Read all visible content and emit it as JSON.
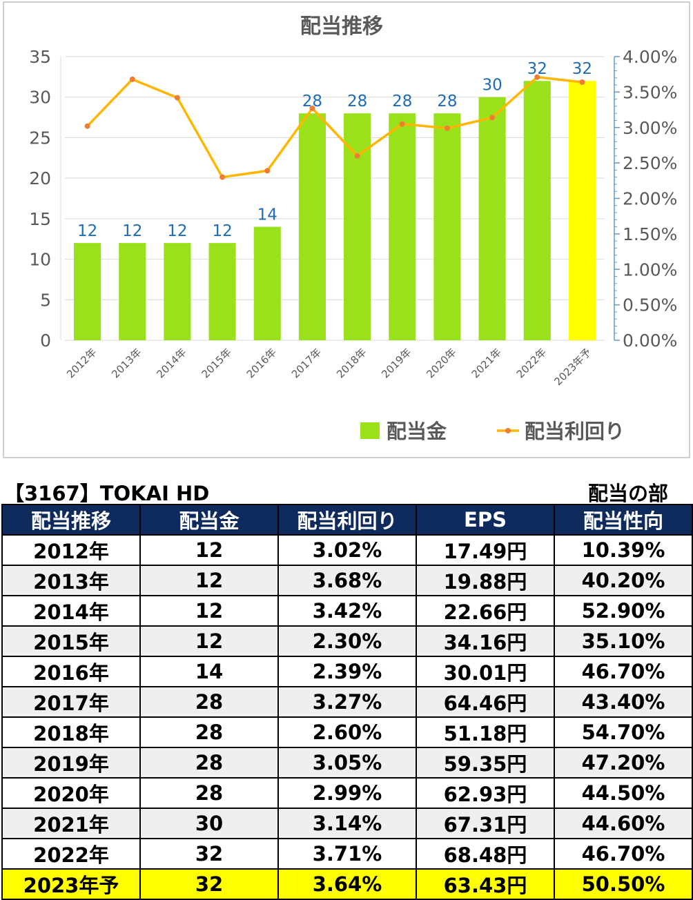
{
  "chart_data": {
    "type": "bar+line",
    "title": "配当推移",
    "categories": [
      "2012年",
      "2013年",
      "2014年",
      "2015年",
      "2016年",
      "2017年",
      "2018年",
      "2019年",
      "2020年",
      "2021年",
      "2022年",
      "2023年予"
    ],
    "series": [
      {
        "name": "配当金",
        "type": "bar",
        "axis": "left",
        "values": [
          12,
          12,
          12,
          12,
          14,
          28,
          28,
          28,
          28,
          30,
          32,
          32
        ],
        "color": "#99e21b",
        "highlight_color": "#ffff00",
        "highlight_index": 11
      },
      {
        "name": "配当利回り",
        "type": "line",
        "axis": "right",
        "values": [
          3.02,
          3.68,
          3.42,
          2.3,
          2.39,
          3.27,
          2.6,
          3.05,
          2.99,
          3.14,
          3.71,
          3.64
        ],
        "color": "#ffb600",
        "marker_color": "#ed7d31"
      }
    ],
    "y_left": {
      "min": 0,
      "max": 35,
      "ticks": [
        "0",
        "5",
        "10",
        "15",
        "20",
        "25",
        "30",
        "35"
      ]
    },
    "y_right": {
      "min": 0,
      "max": 4,
      "ticks": [
        "0.00%",
        "0.50%",
        "1.00%",
        "1.50%",
        "2.00%",
        "2.50%",
        "3.00%",
        "3.50%",
        "4.00%"
      ]
    },
    "data_labels": [
      "12",
      "12",
      "12",
      "12",
      "14",
      "28",
      "28",
      "28",
      "28",
      "30",
      "32",
      "32"
    ],
    "label_color": "#1f6bb5",
    "legend_position": "bottom-right",
    "grid": true
  },
  "table": {
    "title": "【3167】TOKAI HD",
    "section": "配当の部",
    "headers": [
      "配当推移",
      "配当金",
      "配当利回り",
      "EPS",
      "配当性向"
    ],
    "rows": [
      [
        "2012年",
        "12",
        "3.02%",
        "17.49円",
        "10.39%"
      ],
      [
        "2013年",
        "12",
        "3.68%",
        "19.88円",
        "40.20%"
      ],
      [
        "2014年",
        "12",
        "3.42%",
        "22.66円",
        "52.90%"
      ],
      [
        "2015年",
        "12",
        "2.30%",
        "34.16円",
        "35.10%"
      ],
      [
        "2016年",
        "14",
        "2.39%",
        "30.01円",
        "46.70%"
      ],
      [
        "2017年",
        "28",
        "3.27%",
        "64.46円",
        "43.40%"
      ],
      [
        "2018年",
        "28",
        "2.60%",
        "51.18円",
        "54.70%"
      ],
      [
        "2019年",
        "28",
        "3.05%",
        "59.35円",
        "47.20%"
      ],
      [
        "2020年",
        "28",
        "2.99%",
        "62.93円",
        "44.50%"
      ],
      [
        "2021年",
        "30",
        "3.14%",
        "67.31円",
        "44.60%"
      ],
      [
        "2022年",
        "32",
        "3.71%",
        "68.48円",
        "46.70%"
      ],
      [
        "2023年予",
        "32",
        "3.64%",
        "63.43円",
        "50.50%"
      ]
    ],
    "header_color": "#0f2a5c",
    "highlight_color": "#ffff00"
  }
}
